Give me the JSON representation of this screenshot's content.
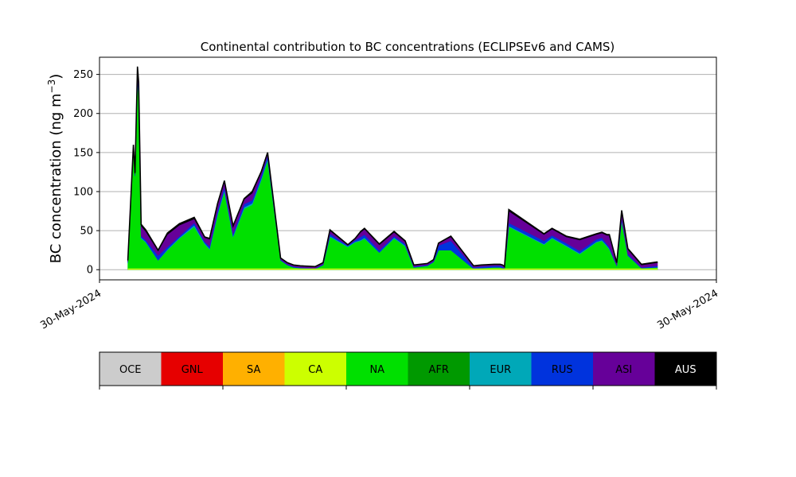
{
  "chart_data": {
    "type": "area",
    "stacked": true,
    "title": "Continental contribution to BC concentrations (ECLIPSEv6 and CAMS)",
    "ylabel_main": "BC concentration (ng m",
    "ylabel_sup": "−3",
    "ylabel_close": ")",
    "xlabel": "",
    "ylim": [
      -13,
      272
    ],
    "yticks": [
      0,
      50,
      100,
      150,
      200,
      250
    ],
    "xticks": [
      "30-May-2024",
      "30-May-2024"
    ],
    "grid": "horizontal",
    "x": [
      0.0459,
      0.055,
      0.0575,
      0.0615,
      0.0635,
      0.0675,
      0.075,
      0.095,
      0.11,
      0.1295,
      0.1535,
      0.1705,
      0.1785,
      0.1915,
      0.2025,
      0.2165,
      0.2345,
      0.2475,
      0.2625,
      0.2725,
      0.2935,
      0.3045,
      0.3145,
      0.3255,
      0.3495,
      0.3625,
      0.3735,
      0.4025,
      0.4145,
      0.4235,
      0.4295,
      0.4535,
      0.4775,
      0.4955,
      0.5095,
      0.5315,
      0.5415,
      0.5495,
      0.5695,
      0.6065,
      0.6185,
      0.6395,
      0.6495,
      0.6535,
      0.6565,
      0.6635,
      0.7205,
      0.7335,
      0.7565,
      0.7785,
      0.8055,
      0.8145,
      0.8225,
      0.8265,
      0.8385,
      0.8465,
      0.8565,
      0.8785,
      0.9045
    ],
    "series": [
      {
        "key": "NA",
        "values": [
          8,
          155,
          120,
          240,
          220,
          40,
          35,
          12,
          25,
          40,
          55,
          33,
          26,
          70,
          100,
          42,
          78,
          83,
          115,
          140,
          12,
          6,
          3,
          2,
          1,
          6,
          42,
          29,
          35,
          37,
          40,
          22,
          40,
          30,
          3,
          5,
          10,
          25,
          25,
          1,
          2,
          3,
          3,
          2,
          1,
          55,
          32,
          40,
          30,
          20,
          35,
          37,
          30,
          26,
          5,
          62,
          18,
          2,
          3
        ]
      },
      {
        "key": "EUR",
        "values": [
          1,
          1,
          0,
          3,
          3,
          1,
          1,
          0,
          1,
          1,
          2,
          1,
          1,
          2,
          2,
          1,
          2,
          2,
          2,
          2,
          0,
          0,
          0,
          0,
          0,
          0,
          1,
          1,
          1,
          1,
          1,
          0,
          1,
          1,
          0,
          0,
          0,
          0,
          0,
          0,
          0,
          0,
          0,
          0,
          0,
          1,
          1,
          1,
          1,
          1,
          1,
          1,
          1,
          1,
          0,
          1,
          0,
          0,
          0
        ]
      },
      {
        "key": "RUS",
        "values": [
          1,
          2,
          2,
          5,
          5,
          2,
          2,
          6,
          3,
          2,
          3,
          2,
          3,
          4,
          4,
          3,
          4,
          4,
          4,
          4,
          1,
          1,
          1,
          1,
          1,
          1,
          3,
          1,
          2,
          4,
          4,
          3,
          2,
          2,
          1,
          1,
          1,
          6,
          12,
          2,
          2,
          2,
          2,
          2,
          1,
          4,
          4,
          3,
          3,
          3,
          3,
          3,
          2,
          2,
          1,
          3,
          2,
          1,
          2
        ]
      },
      {
        "key": "ASI",
        "values": [
          1,
          1,
          1,
          7,
          7,
          13,
          11,
          6,
          16,
          14,
          5,
          5,
          9,
          8,
          7,
          9,
          6,
          9,
          4,
          3,
          2,
          2,
          2,
          2,
          2,
          2,
          4,
          1,
          2,
          6,
          7,
          7,
          5,
          3,
          2,
          2,
          2,
          3,
          5,
          2,
          2,
          2,
          2,
          2,
          2,
          15,
          8,
          8,
          8,
          14,
          6,
          6,
          11,
          15,
          3,
          8,
          6,
          3,
          4
        ]
      },
      {
        "key": "AUS",
        "values": [
          1,
          1,
          1,
          5,
          5,
          2,
          2,
          1,
          2,
          2,
          2,
          1,
          1,
          1,
          1,
          1,
          1,
          2,
          1,
          1,
          0,
          0,
          0,
          0,
          0,
          0,
          1,
          0,
          0,
          1,
          1,
          1,
          1,
          1,
          0,
          0,
          0,
          0,
          1,
          0,
          0,
          0,
          0,
          0,
          0,
          2,
          1,
          1,
          1,
          1,
          1,
          1,
          1,
          1,
          0,
          2,
          1,
          1,
          1
        ]
      }
    ],
    "legend": [
      {
        "key": "OCE",
        "color": "#cccccc",
        "text_color": "#000000"
      },
      {
        "key": "GNL",
        "color": "#e60000",
        "text_color": "#000000"
      },
      {
        "key": "SA",
        "color": "#ffb000",
        "text_color": "#000000"
      },
      {
        "key": "CA",
        "color": "#ccff00",
        "text_color": "#000000"
      },
      {
        "key": "NA",
        "color": "#00e000",
        "text_color": "#000000"
      },
      {
        "key": "AFR",
        "color": "#009900",
        "text_color": "#000000"
      },
      {
        "key": "EUR",
        "color": "#00a8b8",
        "text_color": "#000000"
      },
      {
        "key": "RUS",
        "color": "#0033dd",
        "text_color": "#000000"
      },
      {
        "key": "ASI",
        "color": "#660099",
        "text_color": "#000000"
      },
      {
        "key": "AUS",
        "color": "#000000",
        "text_color": "#ffffff"
      }
    ],
    "legend_placement": "bottom"
  }
}
